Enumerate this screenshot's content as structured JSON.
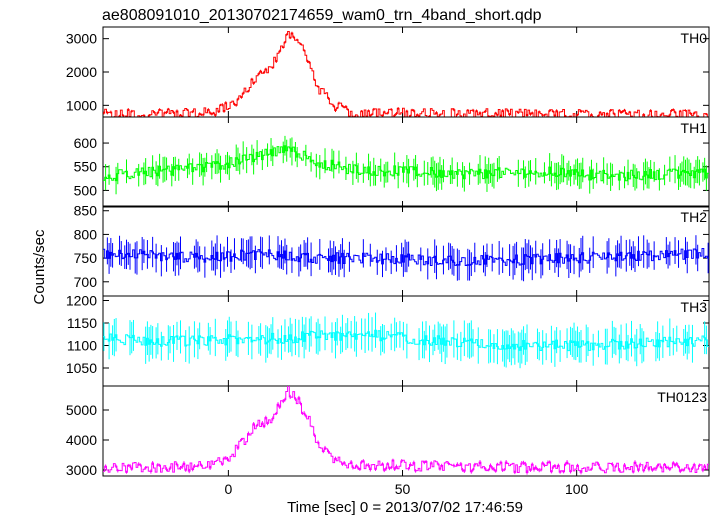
{
  "title": "ae808091010_20130702174659_wam0_trn_4band_short.qdp",
  "xlabel": "Time [sec] 0 = 2013/07/02 17:46:59",
  "ylabel": "Counts/sec",
  "chart_data": {
    "type": "line",
    "title": "ae808091010_20130702174659_wam0_trn_4band_short.qdp",
    "xlabel": "Time [sec] 0 = 2013/07/02 17:46:59",
    "ylabel": "Counts/sec",
    "xlim": [
      -36,
      138
    ],
    "xticks": [
      0,
      50,
      100
    ],
    "grid": false,
    "step": "histogram with error bars",
    "panels": [
      {
        "name": "TH0",
        "color": "#ff0000",
        "ylim": [
          650,
          3350
        ],
        "yticks": [
          1000,
          2000,
          3000
        ],
        "x": [
          -35,
          -25,
          -15,
          -5,
          0,
          5,
          8,
          12,
          15,
          17,
          20,
          23,
          26,
          30,
          35,
          40,
          50,
          70,
          100,
          120,
          137
        ],
        "y": [
          720,
          720,
          730,
          780,
          950,
          1400,
          1800,
          2100,
          2600,
          3200,
          2900,
          2300,
          1500,
          1000,
          800,
          750,
          760,
          740,
          720,
          730,
          700
        ],
        "error": 40
      },
      {
        "name": "TH1",
        "color": "#00ff00",
        "ylim": [
          465,
          655
        ],
        "yticks": [
          500,
          550,
          600
        ],
        "x": [
          -35,
          -20,
          -5,
          5,
          10,
          15,
          20,
          25,
          35,
          50,
          70,
          90,
          110,
          125,
          137
        ],
        "y": [
          530,
          540,
          550,
          565,
          575,
          585,
          580,
          560,
          545,
          540,
          535,
          540,
          530,
          535,
          535
        ],
        "error": 25
      },
      {
        "name": "TH2",
        "color": "#0000ff",
        "ylim": [
          670,
          860
        ],
        "yticks": [
          700,
          750,
          800,
          850
        ],
        "x": [
          -35,
          -20,
          -5,
          10,
          25,
          40,
          60,
          80,
          100,
          120,
          137
        ],
        "y": [
          760,
          755,
          750,
          760,
          750,
          750,
          745,
          745,
          750,
          755,
          760
        ],
        "error": 30
      },
      {
        "name": "TH3",
        "color": "#00ffff",
        "ylim": [
          1010,
          1210
        ],
        "yticks": [
          1050,
          1100,
          1150,
          1200
        ],
        "x": [
          -35,
          -20,
          -5,
          10,
          25,
          40,
          60,
          80,
          100,
          120,
          137
        ],
        "y": [
          1115,
          1110,
          1110,
          1115,
          1120,
          1125,
          1110,
          1100,
          1100,
          1105,
          1110
        ],
        "error": 35
      },
      {
        "name": "TH0123",
        "color": "#ff00ff",
        "ylim": [
          2800,
          5800
        ],
        "yticks": [
          3000,
          4000,
          5000
        ],
        "x": [
          -35,
          -25,
          -15,
          -5,
          0,
          5,
          8,
          12,
          15,
          17,
          20,
          23,
          26,
          30,
          35,
          40,
          50,
          70,
          100,
          120,
          137
        ],
        "y": [
          3080,
          3080,
          3100,
          3150,
          3400,
          4000,
          4500,
          4700,
          5200,
          5700,
          5300,
          4700,
          3900,
          3400,
          3200,
          3150,
          3150,
          3100,
          3080,
          3090,
          3060
        ],
        "error": 60
      }
    ]
  }
}
